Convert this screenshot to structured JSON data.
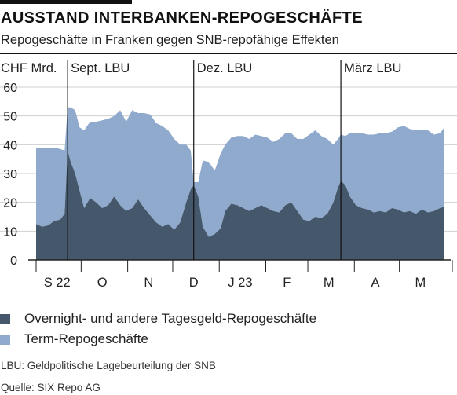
{
  "title": "AUSSTAND INTERBANKEN-REPOGESCHÄFTE",
  "subtitle": "Repogeschäfte in Franken gegen SNB-repofähige Effekten",
  "footnote": "LBU: Geldpolitische Lagebeurteilung der SNB",
  "source": "Quelle: SIX Repo AG",
  "colors": {
    "overnight": "#44576b",
    "term": "#8faacc",
    "grid": "#cfcfcf",
    "axis": "#222222"
  },
  "chart_data": {
    "type": "area",
    "stacked": true,
    "ylabel": "CHF Mrd.",
    "ylim": [
      0,
      63
    ],
    "yticks": [
      0,
      10,
      20,
      30,
      40,
      50,
      60
    ],
    "grid": true,
    "legend_position": "bottom",
    "x_range": [
      "2022-09-01",
      "2023-05-31"
    ],
    "month_ticks": [
      {
        "label": "S 22",
        "date": "2022-09-15"
      },
      {
        "label": "O",
        "date": "2022-10-15"
      },
      {
        "label": "N",
        "date": "2022-11-15"
      },
      {
        "label": "D",
        "date": "2022-12-15"
      },
      {
        "label": "J 23",
        "date": "2023-01-15"
      },
      {
        "label": "F",
        "date": "2023-02-15"
      },
      {
        "label": "M",
        "date": "2023-03-15"
      },
      {
        "label": "A",
        "date": "2023-04-15"
      },
      {
        "label": "M",
        "date": "2023-05-15"
      }
    ],
    "annotations": [
      {
        "label": "Sept. LBU",
        "date": "2022-09-22"
      },
      {
        "label": "Dez. LBU",
        "date": "2022-12-15"
      },
      {
        "label": "März LBU",
        "date": "2023-03-23"
      }
    ],
    "series": [
      {
        "name": "Overnight- und andere Tagesgeld-Repogeschäfte",
        "color": "#44576b",
        "points": [
          [
            "2022-09-01",
            12.5
          ],
          [
            "2022-09-05",
            11.5
          ],
          [
            "2022-09-09",
            12.0
          ],
          [
            "2022-09-13",
            13.5
          ],
          [
            "2022-09-17",
            14.0
          ],
          [
            "2022-09-20",
            16.0
          ],
          [
            "2022-09-22",
            38.0
          ],
          [
            "2022-09-24",
            34.0
          ],
          [
            "2022-09-27",
            30.0
          ],
          [
            "2022-09-30",
            24.0
          ],
          [
            "2022-10-03",
            18.0
          ],
          [
            "2022-10-07",
            21.5
          ],
          [
            "2022-10-11",
            20.0
          ],
          [
            "2022-10-15",
            18.0
          ],
          [
            "2022-10-19",
            19.0
          ],
          [
            "2022-10-23",
            22.0
          ],
          [
            "2022-10-27",
            19.0
          ],
          [
            "2022-10-31",
            17.0
          ],
          [
            "2022-11-04",
            18.0
          ],
          [
            "2022-11-08",
            21.0
          ],
          [
            "2022-11-12",
            18.0
          ],
          [
            "2022-11-16",
            15.5
          ],
          [
            "2022-11-20",
            13.0
          ],
          [
            "2022-11-24",
            11.5
          ],
          [
            "2022-11-28",
            12.5
          ],
          [
            "2022-12-02",
            10.5
          ],
          [
            "2022-12-06",
            13.0
          ],
          [
            "2022-12-10",
            20.0
          ],
          [
            "2022-12-13",
            24.5
          ],
          [
            "2022-12-15",
            26.0
          ],
          [
            "2022-12-18",
            22.0
          ],
          [
            "2022-12-21",
            11.5
          ],
          [
            "2022-12-25",
            8.0
          ],
          [
            "2022-12-29",
            9.0
          ],
          [
            "2023-01-02",
            11.0
          ],
          [
            "2023-01-05",
            17.0
          ],
          [
            "2023-01-09",
            19.5
          ],
          [
            "2023-01-13",
            19.0
          ],
          [
            "2023-01-17",
            18.0
          ],
          [
            "2023-01-21",
            17.0
          ],
          [
            "2023-01-25",
            18.0
          ],
          [
            "2023-01-29",
            19.0
          ],
          [
            "2023-02-02",
            18.0
          ],
          [
            "2023-02-06",
            17.0
          ],
          [
            "2023-02-10",
            16.5
          ],
          [
            "2023-02-14",
            19.0
          ],
          [
            "2023-02-18",
            20.0
          ],
          [
            "2023-02-22",
            17.0
          ],
          [
            "2023-02-26",
            14.0
          ],
          [
            "2023-03-02",
            13.5
          ],
          [
            "2023-03-06",
            15.0
          ],
          [
            "2023-03-10",
            14.5
          ],
          [
            "2023-03-14",
            16.0
          ],
          [
            "2023-03-18",
            20.0
          ],
          [
            "2023-03-21",
            25.0
          ],
          [
            "2023-03-23",
            27.5
          ],
          [
            "2023-03-26",
            26.0
          ],
          [
            "2023-03-29",
            22.0
          ],
          [
            "2023-04-02",
            19.0
          ],
          [
            "2023-04-06",
            18.0
          ],
          [
            "2023-04-10",
            17.5
          ],
          [
            "2023-04-14",
            16.5
          ],
          [
            "2023-04-18",
            17.0
          ],
          [
            "2023-04-22",
            16.5
          ],
          [
            "2023-04-26",
            18.0
          ],
          [
            "2023-04-30",
            17.5
          ],
          [
            "2023-05-04",
            16.5
          ],
          [
            "2023-05-08",
            17.0
          ],
          [
            "2023-05-12",
            16.0
          ],
          [
            "2023-05-16",
            17.5
          ],
          [
            "2023-05-20",
            16.5
          ],
          [
            "2023-05-24",
            17.0
          ],
          [
            "2023-05-28",
            18.0
          ],
          [
            "2023-05-31",
            18.5
          ]
        ]
      },
      {
        "name": "Term-Repogeschäfte",
        "color": "#8faacc",
        "points": [
          [
            "2022-09-01",
            26.5
          ],
          [
            "2022-09-05",
            27.5
          ],
          [
            "2022-09-09",
            27.0
          ],
          [
            "2022-09-13",
            25.5
          ],
          [
            "2022-09-17",
            24.5
          ],
          [
            "2022-09-20",
            22.0
          ],
          [
            "2022-09-22",
            15.0
          ],
          [
            "2022-09-24",
            19.0
          ],
          [
            "2022-09-27",
            22.0
          ],
          [
            "2022-09-30",
            22.0
          ],
          [
            "2022-10-03",
            27.0
          ],
          [
            "2022-10-07",
            26.5
          ],
          [
            "2022-10-11",
            28.0
          ],
          [
            "2022-10-15",
            30.5
          ],
          [
            "2022-10-19",
            30.0
          ],
          [
            "2022-10-23",
            28.0
          ],
          [
            "2022-10-27",
            33.0
          ],
          [
            "2022-10-31",
            31.0
          ],
          [
            "2022-11-04",
            34.0
          ],
          [
            "2022-11-08",
            30.0
          ],
          [
            "2022-11-12",
            33.0
          ],
          [
            "2022-11-16",
            35.0
          ],
          [
            "2022-11-20",
            34.5
          ],
          [
            "2022-11-24",
            35.0
          ],
          [
            "2022-11-28",
            32.5
          ],
          [
            "2022-12-02",
            31.5
          ],
          [
            "2022-12-06",
            27.0
          ],
          [
            "2022-12-10",
            20.0
          ],
          [
            "2022-12-13",
            13.5
          ],
          [
            "2022-12-15",
            1.0
          ],
          [
            "2022-12-18",
            5.0
          ],
          [
            "2022-12-21",
            23.0
          ],
          [
            "2022-12-25",
            26.0
          ],
          [
            "2022-12-29",
            22.0
          ],
          [
            "2023-01-02",
            26.0
          ],
          [
            "2023-01-05",
            23.0
          ],
          [
            "2023-01-09",
            23.0
          ],
          [
            "2023-01-13",
            24.0
          ],
          [
            "2023-01-17",
            25.0
          ],
          [
            "2023-01-21",
            25.0
          ],
          [
            "2023-01-25",
            25.5
          ],
          [
            "2023-01-29",
            24.0
          ],
          [
            "2023-02-02",
            24.5
          ],
          [
            "2023-02-06",
            24.0
          ],
          [
            "2023-02-10",
            25.5
          ],
          [
            "2023-02-14",
            25.0
          ],
          [
            "2023-02-18",
            24.0
          ],
          [
            "2023-02-22",
            25.0
          ],
          [
            "2023-02-26",
            28.0
          ],
          [
            "2023-03-02",
            30.0
          ],
          [
            "2023-03-06",
            30.0
          ],
          [
            "2023-03-10",
            28.5
          ],
          [
            "2023-03-14",
            26.0
          ],
          [
            "2023-03-18",
            20.0
          ],
          [
            "2023-03-21",
            17.0
          ],
          [
            "2023-03-23",
            16.0
          ],
          [
            "2023-03-26",
            17.0
          ],
          [
            "2023-03-29",
            22.0
          ],
          [
            "2023-04-02",
            25.0
          ],
          [
            "2023-04-06",
            26.0
          ],
          [
            "2023-04-10",
            26.0
          ],
          [
            "2023-04-14",
            27.0
          ],
          [
            "2023-04-18",
            27.0
          ],
          [
            "2023-04-22",
            27.5
          ],
          [
            "2023-04-26",
            26.5
          ],
          [
            "2023-04-30",
            28.5
          ],
          [
            "2023-05-04",
            30.0
          ],
          [
            "2023-05-08",
            28.5
          ],
          [
            "2023-05-12",
            29.0
          ],
          [
            "2023-05-16",
            27.5
          ],
          [
            "2023-05-20",
            28.5
          ],
          [
            "2023-05-24",
            26.5
          ],
          [
            "2023-05-28",
            26.0
          ],
          [
            "2023-05-31",
            27.5
          ]
        ]
      }
    ]
  }
}
